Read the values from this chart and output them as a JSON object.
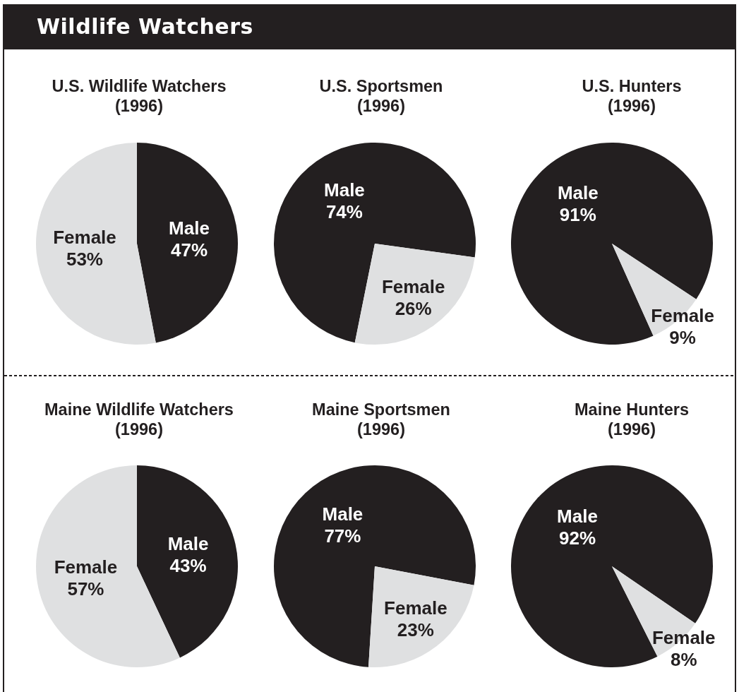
{
  "chart_data": [
    {
      "type": "other",
      "title": "Wildlife Watchers"
    },
    {
      "type": "pie",
      "title": "U.S. Wildlife Watchers",
      "subtitle": "(1996)",
      "categories": [
        "Male",
        "Female"
      ],
      "values": [
        47,
        53
      ],
      "colors": [
        "#231f20",
        "#dfe0e1"
      ],
      "value_labels": [
        "47%",
        "53%"
      ]
    },
    {
      "type": "pie",
      "title": "U.S. Sportsmen",
      "subtitle": "(1996)",
      "categories": [
        "Male",
        "Female"
      ],
      "values": [
        74,
        26
      ],
      "colors": [
        "#231f20",
        "#dfe0e1"
      ],
      "value_labels": [
        "74%",
        "26%"
      ]
    },
    {
      "type": "pie",
      "title": "U.S. Hunters",
      "subtitle": "(1996)",
      "categories": [
        "Male",
        "Female"
      ],
      "values": [
        91,
        9
      ],
      "colors": [
        "#231f20",
        "#dfe0e1"
      ],
      "value_labels": [
        "91%",
        "9%"
      ]
    },
    {
      "type": "pie",
      "title": "Maine Wildlife Watchers",
      "subtitle": "(1996)",
      "categories": [
        "Male",
        "Female"
      ],
      "values": [
        43,
        57
      ],
      "colors": [
        "#231f20",
        "#dfe0e1"
      ],
      "value_labels": [
        "43%",
        "57%"
      ]
    },
    {
      "type": "pie",
      "title": "Maine Sportsmen",
      "subtitle": "(1996)",
      "categories": [
        "Male",
        "Female"
      ],
      "values": [
        77,
        23
      ],
      "colors": [
        "#231f20",
        "#dfe0e1"
      ],
      "value_labels": [
        "77%",
        "23%"
      ]
    },
    {
      "type": "pie",
      "title": "Maine Hunters",
      "subtitle": "(1996)",
      "categories": [
        "Male",
        "Female"
      ],
      "values": [
        92,
        8
      ],
      "colors": [
        "#231f20",
        "#dfe0e1"
      ],
      "value_labels": [
        "92%",
        "8%"
      ]
    }
  ]
}
